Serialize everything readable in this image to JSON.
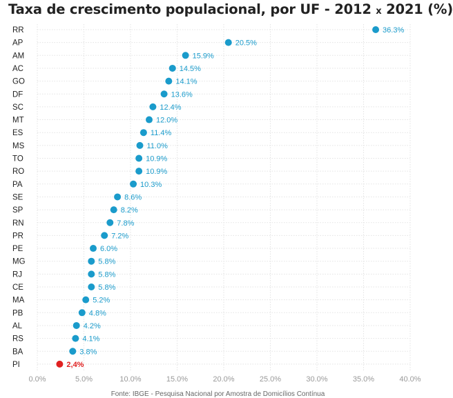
{
  "title": {
    "prefix": "Taxa de crescimento populacional, por UF - 2012",
    "connector": "x",
    "suffix": "2021 (%)"
  },
  "source_note": "Fonte: IBGE - Pesquisa Nacional por Amostra de Domicílios Contínua",
  "colors": {
    "dot": "#1a9bcb",
    "highlight": "#e02020",
    "grid": "#e3e3e3",
    "axis_text": "#999999",
    "category_text": "#222222"
  },
  "chart_data": {
    "type": "scatter",
    "orientation": "horizontal-dot-plot",
    "title": "Taxa de crescimento populacional, por UF - 2012 x 2021 (%)",
    "xlabel": "",
    "ylabel": "",
    "xlim": [
      0,
      40
    ],
    "grid": true,
    "x_ticks": [
      "0.0%",
      "5.0%",
      "10.0%",
      "15.0%",
      "20.0%",
      "25.0%",
      "30.0%",
      "35.0%",
      "40.0%"
    ],
    "categories": [
      "RR",
      "AP",
      "AM",
      "AC",
      "GO",
      "DF",
      "SC",
      "MT",
      "ES",
      "MS",
      "TO",
      "RO",
      "PA",
      "SE",
      "SP",
      "RN",
      "PR",
      "PE",
      "MG",
      "RJ",
      "CE",
      "MA",
      "PB",
      "AL",
      "RS",
      "BA",
      "PI"
    ],
    "values": [
      36.3,
      20.5,
      15.9,
      14.5,
      14.1,
      13.6,
      12.4,
      12.0,
      11.4,
      11.0,
      10.9,
      10.9,
      10.3,
      8.6,
      8.2,
      7.8,
      7.2,
      6.0,
      5.8,
      5.8,
      5.8,
      5.2,
      4.8,
      4.2,
      4.1,
      3.8,
      2.4
    ],
    "labels": [
      "36.3%",
      "20.5%",
      "15.9%",
      "14.5%",
      "14.1%",
      "13.6%",
      "12.4%",
      "12.0%",
      "11.4%",
      "11.0%",
      "10.9%",
      "10.9%",
      "10.3%",
      "8.6%",
      "8.2%",
      "7.8%",
      "7.2%",
      "6.0%",
      "5.8%",
      "5.8%",
      "5.8%",
      "5.2%",
      "4.8%",
      "4.2%",
      "4.1%",
      "3.8%",
      "2,4%"
    ],
    "highlighted_category": "PI"
  }
}
